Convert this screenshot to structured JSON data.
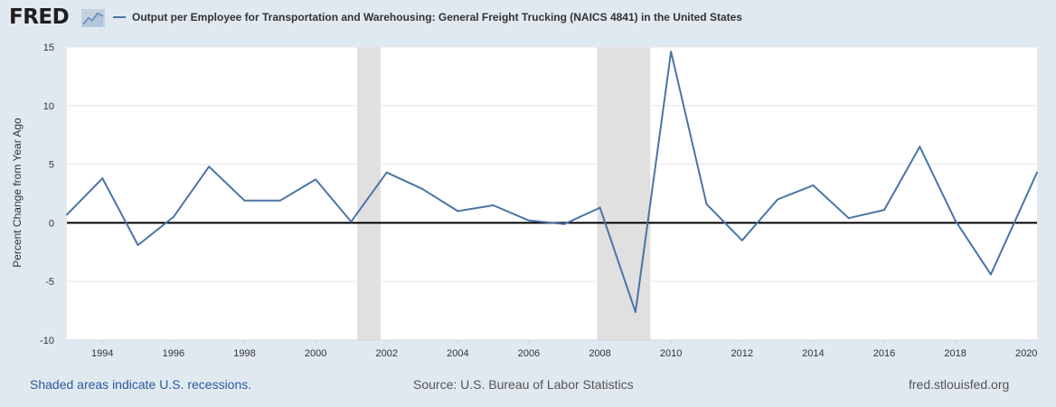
{
  "header": {
    "logo_text": "FRED",
    "logo_icon": "chart-line-icon",
    "series_title": "Output per Employee for Transportation and Warehousing: General Freight Trucking (NAICS 4841) in the United States"
  },
  "footer": {
    "recession_note": "Shaded areas indicate U.S. recessions.",
    "source": "Source: U.S. Bureau of Labor Statistics",
    "site": "fred.stlouisfed.org"
  },
  "colors": {
    "series": "#4a74a6",
    "recession": "#e0e0e0",
    "zero_line": "#000000",
    "background": "#e1e9f0",
    "plot": "#ffffff",
    "link": "#2a5a9a"
  },
  "chart_data": {
    "type": "line",
    "ylabel": "Percent Change from Year Ago",
    "xlabel": "",
    "xlim": [
      1993,
      2020.3
    ],
    "ylim": [
      -10,
      15
    ],
    "yticks": [
      -10,
      -5,
      0,
      5,
      10,
      15
    ],
    "xticks": [
      1994,
      1996,
      1998,
      2000,
      2002,
      2004,
      2006,
      2008,
      2010,
      2012,
      2014,
      2016,
      2018,
      2020
    ],
    "grid": "horizontal",
    "recessions": [
      [
        2001.17,
        2001.83
      ],
      [
        2007.92,
        2009.42
      ]
    ],
    "series": [
      {
        "x": [
          1993,
          1994,
          1995,
          1996,
          1997,
          1998,
          1999,
          2000,
          2001,
          2002,
          2003,
          2004,
          2005,
          2006,
          2007,
          2008,
          2009,
          2010,
          2011,
          2012,
          2013,
          2014,
          2015,
          2016,
          2017,
          2018,
          2019,
          2020.3
        ],
        "values": [
          0.7,
          3.8,
          -1.9,
          0.5,
          4.8,
          1.9,
          1.9,
          3.7,
          0.1,
          4.3,
          2.9,
          1.0,
          1.5,
          0.2,
          -0.1,
          1.3,
          -7.6,
          14.6,
          1.6,
          -1.5,
          2.0,
          3.2,
          0.4,
          1.1,
          6.5,
          0.2,
          -4.4,
          4.3
        ]
      }
    ]
  }
}
